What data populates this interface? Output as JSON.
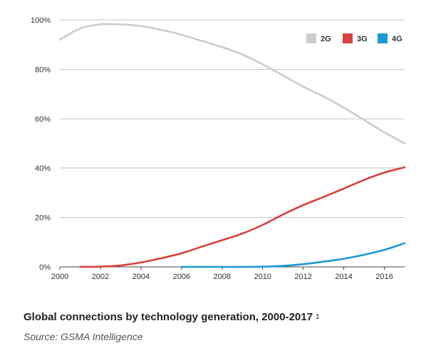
{
  "chart_data": {
    "type": "line",
    "y_ticks": [
      "0%",
      "20%",
      "40%",
      "60%",
      "80%",
      "100%"
    ],
    "y_tick_values": [
      0,
      20,
      40,
      60,
      80,
      100
    ],
    "x_ticks": [
      "2000",
      "2002",
      "2004",
      "2006",
      "2008",
      "2010",
      "2012",
      "2014",
      "2016"
    ],
    "x_tick_values": [
      2000,
      2002,
      2004,
      2006,
      2008,
      2010,
      2012,
      2014,
      2016
    ],
    "xlim": [
      2000,
      2017
    ],
    "ylim": [
      0,
      100
    ],
    "grid": "horizontal",
    "legend_position": "top-right",
    "series": [
      {
        "name": "2G",
        "color": "#cccccc",
        "x": [
          2000,
          2001,
          2002,
          2003,
          2004,
          2005,
          2006,
          2007,
          2008,
          2009,
          2010,
          2011,
          2012,
          2013,
          2014,
          2015,
          2016,
          2017
        ],
        "values": [
          92,
          96.5,
          98.2,
          98.2,
          97.5,
          96,
          94,
          91.5,
          89,
          86,
          82,
          77.5,
          73,
          69,
          64.5,
          59.5,
          54.5,
          50
        ]
      },
      {
        "name": "3G",
        "color": "#d9413d",
        "x": [
          2001,
          2002,
          2003,
          2004,
          2005,
          2006,
          2007,
          2008,
          2009,
          2010,
          2011,
          2012,
          2013,
          2014,
          2015,
          2016,
          2017
        ],
        "values": [
          0,
          0.1,
          0.6,
          1.8,
          3.5,
          5.5,
          8.2,
          10.8,
          13.5,
          17,
          21.2,
          25,
          28.3,
          31.7,
          35.2,
          38.2,
          40.3
        ]
      },
      {
        "name": "4G",
        "color": "#1a9ad6",
        "x": [
          2006,
          2007,
          2008,
          2009,
          2010,
          2011,
          2012,
          2013,
          2014,
          2015,
          2016,
          2017
        ],
        "values": [
          0,
          0,
          0,
          0,
          0.1,
          0.4,
          1.1,
          2.1,
          3.3,
          4.9,
          6.9,
          9.6
        ]
      }
    ]
  },
  "caption": {
    "title": "Global connections by technology generation, 2000-2017",
    "footnote_marker": "1",
    "source": "Source: GSMA Intelligence"
  }
}
